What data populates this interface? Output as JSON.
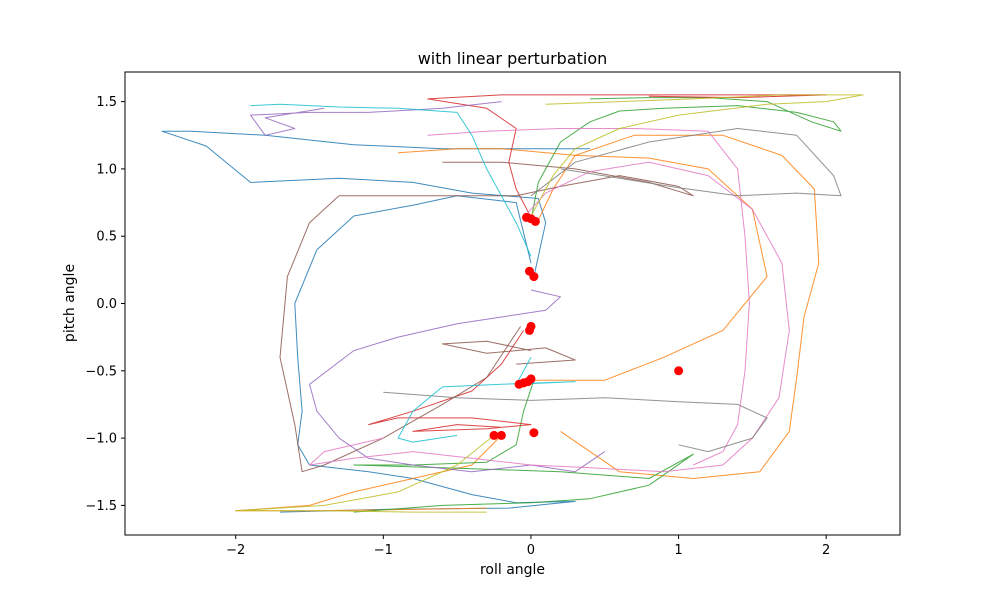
{
  "chart_data": {
    "type": "line",
    "title": "with linear perturbation",
    "xlabel": "roll angle",
    "ylabel": "pitch angle",
    "xlim": [
      -2.75,
      2.5
    ],
    "ylim": [
      -1.72,
      1.72
    ],
    "xticks": [
      -2,
      -1,
      0,
      1,
      2
    ],
    "xtick_labels": [
      "−2",
      "−1",
      "0",
      "1",
      "2"
    ],
    "yticks": [
      -1.5,
      -1.0,
      -0.5,
      0.0,
      0.5,
      1.0,
      1.5
    ],
    "ytick_labels": [
      "−1.5",
      "−1.0",
      "−0.5",
      "0.0",
      "0.5",
      "1.0",
      "1.5"
    ],
    "grid": false,
    "legend": "none",
    "marker_color": "#ff0000",
    "series": [
      {
        "color": "#1f77b4",
        "points": [
          [
            0.0,
            0.3
          ],
          [
            -0.1,
            0.75
          ],
          [
            -0.5,
            0.8
          ],
          [
            -0.8,
            0.73
          ],
          [
            -1.2,
            0.65
          ],
          [
            -1.45,
            0.4
          ],
          [
            -1.6,
            0.0
          ],
          [
            -1.58,
            -0.4
          ],
          [
            -1.55,
            -0.8
          ],
          [
            -1.58,
            -1.05
          ],
          [
            -1.5,
            -1.2
          ],
          [
            -1.1,
            -1.25
          ],
          [
            -0.8,
            -1.3
          ],
          [
            -0.4,
            -1.42
          ],
          [
            -0.1,
            -1.48
          ],
          [
            0.3,
            -1.47
          ],
          [
            -0.15,
            -1.52
          ],
          [
            -1.0,
            -1.53
          ],
          [
            -1.7,
            -1.55
          ]
        ],
        "start": [
          -0.05,
          0.24
        ]
      },
      {
        "color": "#1f77b4",
        "points": [
          [
            0.02,
            0.2
          ],
          [
            0.1,
            0.6
          ],
          [
            0.05,
            0.78
          ],
          [
            -0.4,
            0.82
          ],
          [
            -0.8,
            0.9
          ],
          [
            -1.3,
            0.93
          ],
          [
            -1.9,
            0.9
          ],
          [
            -2.2,
            1.17
          ],
          [
            -2.5,
            1.28
          ],
          [
            -2.3,
            1.28
          ],
          [
            -1.8,
            1.25
          ],
          [
            -1.2,
            1.18
          ],
          [
            -0.6,
            1.15
          ],
          [
            0.0,
            1.15
          ],
          [
            0.4,
            1.15
          ]
        ],
        "start": [
          0.02,
          0.2
        ]
      },
      {
        "color": "#ff7f0e",
        "points": [
          [
            0.2,
            -0.95
          ],
          [
            0.6,
            -1.25
          ],
          [
            1.1,
            -1.3
          ],
          [
            1.55,
            -1.25
          ],
          [
            1.75,
            -0.95
          ],
          [
            1.8,
            -0.55
          ],
          [
            1.85,
            -0.1
          ],
          [
            1.95,
            0.3
          ],
          [
            1.92,
            0.85
          ],
          [
            1.7,
            1.1
          ],
          [
            1.3,
            1.25
          ],
          [
            0.7,
            1.25
          ],
          [
            0.3,
            1.1
          ],
          [
            0.15,
            0.85
          ],
          [
            0.05,
            0.62
          ]
        ],
        "start": [
          0.05,
          0.62
        ]
      },
      {
        "color": "#ff7f0e",
        "points": [
          [
            0.0,
            -0.57
          ],
          [
            0.5,
            -0.57
          ],
          [
            0.9,
            -0.4
          ],
          [
            1.3,
            -0.2
          ],
          [
            1.6,
            0.2
          ],
          [
            1.5,
            0.7
          ],
          [
            1.2,
            1.0
          ],
          [
            0.8,
            1.08
          ],
          [
            0.3,
            1.1
          ],
          [
            -0.2,
            1.15
          ],
          [
            -0.5,
            1.15
          ],
          [
            -0.9,
            1.12
          ]
        ]
      },
      {
        "color": "#ff7f0e",
        "points": [
          [
            -0.2,
            -0.98
          ],
          [
            -0.4,
            -1.2
          ],
          [
            -0.8,
            -1.3
          ],
          [
            -1.2,
            -1.4
          ],
          [
            -1.5,
            -1.5
          ],
          [
            -2.0,
            -1.54
          ],
          [
            -1.5,
            -1.54
          ],
          [
            -0.8,
            -1.53
          ],
          [
            -0.3,
            -1.52
          ]
        ],
        "start": [
          -0.2,
          -0.98
        ]
      },
      {
        "color": "#2ca02c",
        "points": [
          [
            0.0,
            0.62
          ],
          [
            0.05,
            0.9
          ],
          [
            0.2,
            1.2
          ],
          [
            0.4,
            1.35
          ],
          [
            0.6,
            1.43
          ],
          [
            0.9,
            1.45
          ],
          [
            1.4,
            1.47
          ],
          [
            1.8,
            1.42
          ],
          [
            2.05,
            1.35
          ],
          [
            2.1,
            1.28
          ],
          [
            1.9,
            1.35
          ],
          [
            1.6,
            1.5
          ],
          [
            1.2,
            1.53
          ],
          [
            0.8,
            1.53
          ],
          [
            0.4,
            1.52
          ]
        ],
        "start": [
          0.0,
          0.62
        ]
      },
      {
        "color": "#2ca02c",
        "points": [
          [
            0.02,
            -0.57
          ],
          [
            -0.05,
            -0.8
          ],
          [
            -0.1,
            -1.05
          ],
          [
            -0.3,
            -1.18
          ],
          [
            -0.8,
            -1.2
          ],
          [
            -1.2,
            -1.2
          ],
          [
            -0.6,
            -1.22
          ],
          [
            0.2,
            -1.25
          ],
          [
            0.8,
            -1.3
          ],
          [
            1.1,
            -1.12
          ],
          [
            0.8,
            -1.35
          ],
          [
            0.4,
            -1.45
          ],
          [
            0.0,
            -1.48
          ],
          [
            -0.6,
            -1.5
          ],
          [
            -1.2,
            -1.55
          ]
        ],
        "start": [
          0.02,
          -0.57
        ]
      },
      {
        "color": "#d62728",
        "points": [
          [
            -0.05,
            -0.2
          ],
          [
            -0.2,
            -0.45
          ],
          [
            -0.4,
            -0.65
          ],
          [
            -0.8,
            -0.8
          ],
          [
            -1.1,
            -0.9
          ],
          [
            -0.9,
            -0.85
          ],
          [
            -0.4,
            -0.85
          ],
          [
            0.0,
            -0.9
          ],
          [
            -0.3,
            -0.93
          ],
          [
            -0.8,
            -0.95
          ],
          [
            -0.5,
            -0.9
          ],
          [
            -0.2,
            -0.92
          ]
        ],
        "start": [
          -0.05,
          -0.2
        ]
      },
      {
        "color": "#d62728",
        "points": [
          [
            0.02,
            0.6
          ],
          [
            -0.1,
            0.85
          ],
          [
            -0.15,
            1.05
          ],
          [
            -0.1,
            1.3
          ],
          [
            -0.3,
            1.45
          ],
          [
            -0.7,
            1.52
          ],
          [
            -0.2,
            1.55
          ],
          [
            0.5,
            1.55
          ],
          [
            1.2,
            1.55
          ],
          [
            2.0,
            1.55
          ],
          [
            1.4,
            1.53
          ],
          [
            0.8,
            1.54
          ]
        ]
      },
      {
        "color": "#9467bd",
        "points": [
          [
            0.0,
            0.1
          ],
          [
            0.2,
            0.05
          ],
          [
            0.1,
            -0.05
          ],
          [
            -0.2,
            -0.1
          ],
          [
            -0.5,
            -0.15
          ],
          [
            -0.9,
            -0.25
          ],
          [
            -1.2,
            -0.35
          ],
          [
            -1.5,
            -0.6
          ],
          [
            -1.45,
            -0.8
          ],
          [
            -1.3,
            -1.0
          ],
          [
            -1.1,
            -1.15
          ],
          [
            -0.8,
            -1.2
          ],
          [
            -0.4,
            -1.25
          ],
          [
            0.0,
            -1.2
          ],
          [
            0.3,
            -1.25
          ],
          [
            0.5,
            -1.1
          ]
        ]
      },
      {
        "color": "#9467bd",
        "points": [
          [
            -0.2,
            1.5
          ],
          [
            -0.6,
            1.45
          ],
          [
            -1.1,
            1.42
          ],
          [
            -1.5,
            1.42
          ],
          [
            -1.9,
            1.4
          ],
          [
            -1.8,
            1.25
          ],
          [
            -1.6,
            1.3
          ],
          [
            -1.8,
            1.38
          ],
          [
            -1.4,
            1.45
          ]
        ]
      },
      {
        "color": "#8c564b",
        "points": [
          [
            -0.07,
            -0.17
          ],
          [
            -0.3,
            -0.55
          ],
          [
            -0.6,
            -0.75
          ],
          [
            -1.0,
            -1.0
          ],
          [
            -1.4,
            -1.2
          ],
          [
            -1.55,
            -1.25
          ],
          [
            -1.6,
            -0.9
          ],
          [
            -1.7,
            -0.4
          ],
          [
            -1.65,
            0.2
          ],
          [
            -1.5,
            0.6
          ],
          [
            -1.3,
            0.8
          ],
          [
            -0.9,
            0.8
          ],
          [
            -0.5,
            0.8
          ],
          [
            -0.1,
            0.8
          ],
          [
            0.2,
            0.87
          ],
          [
            0.6,
            0.95
          ],
          [
            1.0,
            0.87
          ],
          [
            1.1,
            0.8
          ],
          [
            0.8,
            0.9
          ],
          [
            0.3,
            1.0
          ],
          [
            -0.2,
            1.05
          ],
          [
            -0.6,
            1.05
          ]
        ]
      },
      {
        "color": "#8c564b",
        "points": [
          [
            0.0,
            -0.35
          ],
          [
            -0.3,
            -0.28
          ],
          [
            -0.6,
            -0.3
          ],
          [
            -0.3,
            -0.37
          ],
          [
            0.1,
            -0.33
          ],
          [
            0.3,
            -0.42
          ],
          [
            -0.1,
            -0.45
          ]
        ]
      },
      {
        "color": "#e377c2",
        "points": [
          [
            -0.05,
            0.64
          ],
          [
            0.1,
            0.82
          ],
          [
            0.4,
            0.98
          ],
          [
            0.8,
            1.05
          ],
          [
            1.2,
            0.95
          ],
          [
            1.5,
            0.7
          ],
          [
            1.7,
            0.3
          ],
          [
            1.75,
            -0.2
          ],
          [
            1.68,
            -0.7
          ],
          [
            1.5,
            -1.0
          ],
          [
            1.3,
            -1.2
          ],
          [
            0.9,
            -1.25
          ],
          [
            0.4,
            -1.22
          ],
          [
            0.0,
            -1.2
          ],
          [
            -0.4,
            -1.15
          ],
          [
            -0.8,
            -1.1
          ],
          [
            -1.2,
            -1.15
          ],
          [
            -1.5,
            -1.2
          ],
          [
            -1.4,
            -1.1
          ],
          [
            -1.0,
            -1.0
          ]
        ]
      },
      {
        "color": "#e377c2",
        "points": [
          [
            -0.7,
            1.25
          ],
          [
            -0.3,
            1.28
          ],
          [
            0.2,
            1.3
          ],
          [
            0.7,
            1.3
          ],
          [
            1.2,
            1.28
          ],
          [
            1.4,
            1.0
          ],
          [
            1.45,
            0.5
          ],
          [
            1.48,
            0.0
          ],
          [
            1.45,
            -0.5
          ],
          [
            1.4,
            -0.9
          ],
          [
            1.3,
            -1.1
          ],
          [
            1.1,
            -1.2
          ]
        ]
      },
      {
        "color": "#7f7f7f",
        "points": [
          [
            1.0,
            -1.05
          ],
          [
            1.2,
            -1.1
          ],
          [
            1.5,
            -1.0
          ],
          [
            1.6,
            -0.85
          ],
          [
            1.4,
            -0.75
          ],
          [
            1.0,
            -0.73
          ],
          [
            0.5,
            -0.7
          ],
          [
            0.0,
            -0.72
          ],
          [
            -0.5,
            -0.7
          ],
          [
            -1.0,
            -0.66
          ]
        ]
      },
      {
        "color": "#7f7f7f",
        "points": [
          [
            0.0,
            0.8
          ],
          [
            0.3,
            1.05
          ],
          [
            0.8,
            1.2
          ],
          [
            1.4,
            1.3
          ],
          [
            1.8,
            1.25
          ],
          [
            2.05,
            0.95
          ],
          [
            2.1,
            0.8
          ],
          [
            1.8,
            0.82
          ],
          [
            1.4,
            0.8
          ],
          [
            1.0,
            0.86
          ],
          [
            0.6,
            0.93
          ],
          [
            0.2,
            1.0
          ]
        ]
      },
      {
        "color": "#bcbd22",
        "points": [
          [
            0.0,
            0.65
          ],
          [
            0.15,
            0.95
          ],
          [
            0.3,
            1.15
          ],
          [
            0.6,
            1.3
          ],
          [
            1.0,
            1.4
          ],
          [
            1.6,
            1.48
          ],
          [
            2.0,
            1.5
          ],
          [
            2.25,
            1.55
          ],
          [
            1.7,
            1.55
          ],
          [
            1.1,
            1.52
          ],
          [
            0.6,
            1.5
          ],
          [
            0.1,
            1.48
          ]
        ]
      },
      {
        "color": "#bcbd22",
        "points": [
          [
            -0.25,
            -0.98
          ],
          [
            -0.5,
            -1.2
          ],
          [
            -0.9,
            -1.4
          ],
          [
            -1.4,
            -1.5
          ],
          [
            -2.0,
            -1.54
          ],
          [
            -1.4,
            -1.54
          ],
          [
            -0.8,
            -1.55
          ],
          [
            -0.3,
            -1.55
          ]
        ]
      },
      {
        "color": "#17becf",
        "points": [
          [
            0.0,
            0.35
          ],
          [
            -0.1,
            0.6
          ],
          [
            -0.2,
            0.8
          ],
          [
            -0.3,
            1.0
          ],
          [
            -0.4,
            1.25
          ],
          [
            -0.5,
            1.42
          ],
          [
            -0.9,
            1.45
          ],
          [
            -1.3,
            1.46
          ],
          [
            -1.7,
            1.48
          ],
          [
            -1.9,
            1.47
          ]
        ]
      },
      {
        "color": "#17becf",
        "points": [
          [
            0.0,
            -0.4
          ],
          [
            -0.1,
            -0.6
          ],
          [
            0.3,
            -0.58
          ],
          [
            -0.2,
            -0.6
          ],
          [
            -0.6,
            -0.62
          ],
          [
            -0.8,
            -0.8
          ],
          [
            -0.9,
            -1.0
          ],
          [
            -0.8,
            -1.03
          ],
          [
            -0.5,
            -0.98
          ]
        ]
      }
    ],
    "markers": [
      [
        -0.03,
        0.64
      ],
      [
        0.0,
        0.63
      ],
      [
        0.03,
        0.61
      ],
      [
        -0.01,
        0.24
      ],
      [
        0.02,
        0.2
      ],
      [
        0.0,
        -0.17
      ],
      [
        -0.01,
        -0.2
      ],
      [
        -0.02,
        -0.58
      ],
      [
        -0.05,
        -0.59
      ],
      [
        -0.08,
        -0.6
      ],
      [
        0.0,
        -0.56
      ],
      [
        -0.25,
        -0.98
      ],
      [
        -0.2,
        -0.98
      ],
      [
        0.02,
        -0.96
      ],
      [
        1.0,
        -0.5
      ]
    ]
  }
}
